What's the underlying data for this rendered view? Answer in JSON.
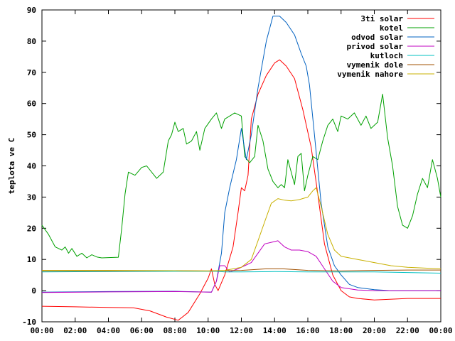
{
  "chart_data": {
    "type": "line",
    "title": "",
    "xlabel": "",
    "ylabel": "teplota ve C",
    "x_ticks": [
      "00:00",
      "02:00",
      "04:00",
      "06:00",
      "08:00",
      "10:00",
      "12:00",
      "14:00",
      "16:00",
      "18:00",
      "20:00",
      "22:00",
      "00:00"
    ],
    "xlim": [
      0,
      24
    ],
    "ylim": [
      -10,
      90
    ],
    "y_ticks": [
      -10,
      0,
      10,
      20,
      30,
      40,
      50,
      60,
      70,
      80,
      90
    ],
    "grid": false,
    "legend": "top-right",
    "series": [
      {
        "name": "3ti solar",
        "color": "#ff0000",
        "points": [
          [
            0,
            -5
          ],
          [
            2,
            -5.2
          ],
          [
            4,
            -5.4
          ],
          [
            5.5,
            -5.5
          ],
          [
            6.5,
            -6.5
          ],
          [
            7.5,
            -8.5
          ],
          [
            8.2,
            -9.5
          ],
          [
            8.8,
            -7
          ],
          [
            9.5,
            -1
          ],
          [
            10,
            4
          ],
          [
            10.2,
            7
          ],
          [
            10.4,
            2
          ],
          [
            10.6,
            0
          ],
          [
            11,
            5
          ],
          [
            11.5,
            14
          ],
          [
            11.8,
            25
          ],
          [
            12,
            33
          ],
          [
            12.2,
            32
          ],
          [
            12.4,
            37
          ],
          [
            12.6,
            55
          ],
          [
            13,
            63
          ],
          [
            13.5,
            69
          ],
          [
            14,
            73
          ],
          [
            14.3,
            74
          ],
          [
            14.7,
            72
          ],
          [
            15.2,
            68
          ],
          [
            15.7,
            58
          ],
          [
            16.2,
            46
          ],
          [
            16.6,
            31
          ],
          [
            17,
            15
          ],
          [
            17.5,
            5
          ],
          [
            18,
            0
          ],
          [
            18.5,
            -2
          ],
          [
            19,
            -2.5
          ],
          [
            20,
            -3
          ],
          [
            22,
            -2.5
          ],
          [
            24,
            -2.5
          ]
        ]
      },
      {
        "name": "kotel",
        "color": "#00a000",
        "points": [
          [
            0,
            21
          ],
          [
            0.4,
            18
          ],
          [
            0.8,
            14
          ],
          [
            1.2,
            13
          ],
          [
            1.4,
            14
          ],
          [
            1.6,
            12
          ],
          [
            1.8,
            13.5
          ],
          [
            2.1,
            11
          ],
          [
            2.4,
            12
          ],
          [
            2.7,
            10.5
          ],
          [
            3,
            11.5
          ],
          [
            3.3,
            10.8
          ],
          [
            3.6,
            10.5
          ],
          [
            4,
            10.6
          ],
          [
            4.6,
            10.7
          ],
          [
            4.8,
            20
          ],
          [
            5,
            31
          ],
          [
            5.2,
            38
          ],
          [
            5.6,
            37
          ],
          [
            6,
            39.5
          ],
          [
            6.3,
            40
          ],
          [
            6.6,
            38
          ],
          [
            6.9,
            36
          ],
          [
            7.3,
            38
          ],
          [
            7.6,
            48
          ],
          [
            7.8,
            50
          ],
          [
            8,
            54
          ],
          [
            8.2,
            51
          ],
          [
            8.5,
            52
          ],
          [
            8.7,
            47
          ],
          [
            9,
            48
          ],
          [
            9.3,
            51
          ],
          [
            9.5,
            45
          ],
          [
            9.8,
            52
          ],
          [
            10.2,
            55
          ],
          [
            10.5,
            57
          ],
          [
            10.8,
            52
          ],
          [
            11,
            55
          ],
          [
            11.3,
            56
          ],
          [
            11.6,
            57
          ],
          [
            12,
            56
          ],
          [
            12.2,
            43
          ],
          [
            12.5,
            41
          ],
          [
            12.8,
            43
          ],
          [
            13,
            53
          ],
          [
            13.3,
            48
          ],
          [
            13.6,
            39
          ],
          [
            13.9,
            35
          ],
          [
            14.2,
            33
          ],
          [
            14.4,
            34
          ],
          [
            14.6,
            33
          ],
          [
            14.8,
            42
          ],
          [
            15,
            38
          ],
          [
            15.2,
            34
          ],
          [
            15.4,
            43
          ],
          [
            15.6,
            44
          ],
          [
            15.8,
            32
          ],
          [
            16,
            37
          ],
          [
            16.3,
            43
          ],
          [
            16.6,
            42
          ],
          [
            16.9,
            48
          ],
          [
            17.2,
            53
          ],
          [
            17.5,
            55
          ],
          [
            17.8,
            51
          ],
          [
            18,
            56
          ],
          [
            18.4,
            55
          ],
          [
            18.8,
            57
          ],
          [
            19.2,
            53
          ],
          [
            19.5,
            56
          ],
          [
            19.8,
            52
          ],
          [
            20.2,
            54
          ],
          [
            20.5,
            63
          ],
          [
            20.8,
            49
          ],
          [
            21.1,
            40
          ],
          [
            21.4,
            27
          ],
          [
            21.7,
            21
          ],
          [
            22,
            20
          ],
          [
            22.3,
            24
          ],
          [
            22.6,
            31
          ],
          [
            22.9,
            36
          ],
          [
            23.2,
            33
          ],
          [
            23.5,
            42
          ],
          [
            23.8,
            36
          ],
          [
            24,
            30
          ]
        ]
      },
      {
        "name": "odvod solar",
        "color": "#0060c0",
        "points": [
          [
            0,
            -0.5
          ],
          [
            4,
            -0.3
          ],
          [
            8,
            -0.2
          ],
          [
            10.2,
            -0.5
          ],
          [
            10.5,
            3
          ],
          [
            10.8,
            12
          ],
          [
            11,
            25
          ],
          [
            11.3,
            33
          ],
          [
            11.7,
            42
          ],
          [
            12,
            52
          ],
          [
            12.3,
            42
          ],
          [
            12.6,
            50
          ],
          [
            13,
            65
          ],
          [
            13.5,
            80
          ],
          [
            13.9,
            88
          ],
          [
            14.3,
            88
          ],
          [
            14.7,
            86
          ],
          [
            15.2,
            82
          ],
          [
            15.6,
            76
          ],
          [
            15.9,
            72
          ],
          [
            16.1,
            66
          ],
          [
            16.4,
            50
          ],
          [
            16.8,
            28
          ],
          [
            17.2,
            14
          ],
          [
            17.6,
            8
          ],
          [
            18,
            5
          ],
          [
            18.5,
            2
          ],
          [
            19,
            1
          ],
          [
            20,
            0.3
          ],
          [
            21,
            0
          ],
          [
            22,
            0
          ],
          [
            24,
            0
          ]
        ]
      },
      {
        "name": "privod solar",
        "color": "#c000c0",
        "points": [
          [
            0,
            -0.6
          ],
          [
            4,
            -0.4
          ],
          [
            8,
            -0.3
          ],
          [
            10.2,
            -0.5
          ],
          [
            10.5,
            3
          ],
          [
            10.7,
            8
          ],
          [
            11,
            8
          ],
          [
            11.3,
            6
          ],
          [
            11.8,
            7
          ],
          [
            12.2,
            8
          ],
          [
            12.6,
            9
          ],
          [
            13,
            12
          ],
          [
            13.4,
            15
          ],
          [
            13.8,
            15.5
          ],
          [
            14.2,
            16
          ],
          [
            14.6,
            14
          ],
          [
            15,
            13
          ],
          [
            15.5,
            13
          ],
          [
            16,
            12.5
          ],
          [
            16.5,
            11
          ],
          [
            17,
            7
          ],
          [
            17.5,
            3
          ],
          [
            18,
            1
          ],
          [
            19,
            0.2
          ],
          [
            20,
            0
          ],
          [
            22,
            0
          ],
          [
            24,
            0
          ]
        ]
      },
      {
        "name": "kutloch",
        "color": "#00c0c0",
        "points": [
          [
            0,
            6
          ],
          [
            4,
            6.1
          ],
          [
            8,
            6.2
          ],
          [
            10.5,
            6.2
          ],
          [
            11,
            6
          ],
          [
            12,
            6
          ],
          [
            14,
            6.1
          ],
          [
            16,
            6
          ],
          [
            18,
            6
          ],
          [
            20,
            6
          ],
          [
            22,
            5.8
          ],
          [
            24,
            5.6
          ]
        ]
      },
      {
        "name": "vymenik dole",
        "color": "#a05000",
        "points": [
          [
            0,
            6.3
          ],
          [
            4,
            6.3
          ],
          [
            8,
            6.4
          ],
          [
            10,
            6.3
          ],
          [
            12,
            6.5
          ],
          [
            13.5,
            7
          ],
          [
            14.5,
            7
          ],
          [
            16,
            6.5
          ],
          [
            18,
            6.3
          ],
          [
            20,
            6.5
          ],
          [
            22,
            6.6
          ],
          [
            24,
            6.6
          ]
        ]
      },
      {
        "name": "vymenik nahore",
        "color": "#c8b000",
        "points": [
          [
            0,
            6.5
          ],
          [
            4,
            6.5
          ],
          [
            8,
            6.4
          ],
          [
            10,
            6.3
          ],
          [
            11,
            6.5
          ],
          [
            12,
            7.5
          ],
          [
            12.6,
            10
          ],
          [
            13,
            16
          ],
          [
            13.4,
            22
          ],
          [
            13.8,
            28
          ],
          [
            14.2,
            29.5
          ],
          [
            14.6,
            29
          ],
          [
            15,
            28.8
          ],
          [
            15.5,
            29.2
          ],
          [
            16,
            30
          ],
          [
            16.3,
            32
          ],
          [
            16.5,
            33
          ],
          [
            16.8,
            27
          ],
          [
            17.2,
            18
          ],
          [
            17.6,
            13
          ],
          [
            18,
            11
          ],
          [
            19,
            10
          ],
          [
            20,
            9
          ],
          [
            21,
            8
          ],
          [
            22,
            7.5
          ],
          [
            24,
            7
          ]
        ]
      }
    ]
  }
}
